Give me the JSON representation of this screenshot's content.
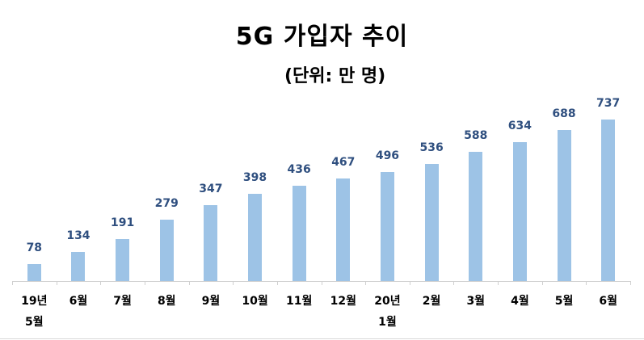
{
  "chart_data": {
    "type": "bar",
    "title": "5G 가입자 추이",
    "subtitle": "(단위: 만 명)",
    "xlabel": "",
    "ylabel": "",
    "categories": [
      "19년\n5월",
      "6월",
      "7월",
      "8월",
      "9월",
      "10월",
      "11월",
      "12월",
      "20년\n1월",
      "2월",
      "3월",
      "4월",
      "5월",
      "6월"
    ],
    "values": [
      78,
      134,
      191,
      279,
      347,
      398,
      436,
      467,
      496,
      536,
      588,
      634,
      688,
      737
    ],
    "series": [
      {
        "name": "5G 가입자",
        "values": [
          78,
          134,
          191,
          279,
          347,
          398,
          436,
          467,
          496,
          536,
          588,
          634,
          688,
          737
        ]
      }
    ],
    "bar_color": "#9dc3e6",
    "label_color": "#2f4f7f",
    "grid": false,
    "legend": "none"
  }
}
